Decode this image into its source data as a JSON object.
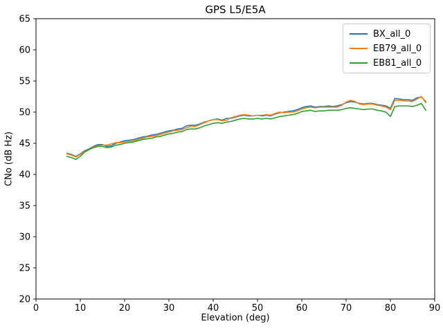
{
  "chart_data": {
    "type": "line",
    "title": "GPS L5/E5A",
    "xlabel": "Elevation (deg)",
    "ylabel": "CNo (dB Hz)",
    "xlim": [
      0,
      90
    ],
    "ylim": [
      20,
      65
    ],
    "xticks": [
      0,
      10,
      20,
      30,
      40,
      50,
      60,
      70,
      80,
      90
    ],
    "yticks": [
      20,
      25,
      30,
      35,
      40,
      45,
      50,
      55,
      60,
      65
    ],
    "grid": false,
    "legend_position": "upper right",
    "background_color": "#ffffff",
    "spine_color": "#000000",
    "x": [
      7,
      8,
      9,
      10,
      11,
      12,
      13,
      14,
      15,
      16,
      17,
      18,
      19,
      20,
      21,
      22,
      23,
      24,
      25,
      26,
      27,
      28,
      29,
      30,
      31,
      32,
      33,
      34,
      35,
      36,
      37,
      38,
      39,
      40,
      41,
      42,
      43,
      44,
      45,
      46,
      47,
      48,
      49,
      50,
      51,
      52,
      53,
      54,
      55,
      56,
      57,
      58,
      59,
      60,
      61,
      62,
      63,
      64,
      65,
      66,
      67,
      68,
      69,
      70,
      71,
      72,
      73,
      74,
      75,
      76,
      77,
      78,
      79,
      80,
      81,
      82,
      83,
      84,
      85,
      86,
      87,
      88
    ],
    "series": [
      {
        "name": "BX_all_0",
        "color": "#1f77b4",
        "values": [
          43.4,
          43.2,
          42.9,
          43.3,
          43.8,
          44.1,
          44.5,
          44.8,
          44.8,
          44.5,
          44.6,
          45.0,
          45.2,
          45.4,
          45.5,
          45.6,
          45.8,
          46.0,
          46.1,
          46.3,
          46.4,
          46.6,
          46.8,
          47.0,
          47.1,
          47.3,
          47.4,
          47.8,
          47.9,
          47.9,
          48.1,
          48.4,
          48.6,
          48.8,
          48.9,
          48.7,
          49.0,
          49.0,
          49.2,
          49.4,
          49.5,
          49.4,
          49.4,
          49.5,
          49.4,
          49.5,
          49.4,
          49.7,
          49.9,
          50.0,
          50.1,
          50.2,
          50.4,
          50.7,
          50.9,
          51.0,
          50.8,
          50.9,
          50.9,
          51.0,
          50.9,
          51.0,
          51.2,
          51.5,
          51.7,
          51.6,
          51.4,
          51.3,
          51.4,
          51.4,
          51.2,
          51.1,
          51.0,
          50.6,
          52.2,
          52.1,
          52.0,
          52.0,
          51.9,
          52.3,
          52.4,
          51.7
        ]
      },
      {
        "name": "EB79_all_0",
        "color": "#ff7f0e",
        "values": [
          43.3,
          43.1,
          42.8,
          43.2,
          43.7,
          44.0,
          44.4,
          44.6,
          44.7,
          44.7,
          44.9,
          45.1,
          45.1,
          45.2,
          45.3,
          45.4,
          45.6,
          45.8,
          46.0,
          46.1,
          46.2,
          46.4,
          46.6,
          46.8,
          47.0,
          47.1,
          47.2,
          47.5,
          47.7,
          47.7,
          48.0,
          48.3,
          48.6,
          48.8,
          48.8,
          48.6,
          48.7,
          49.1,
          49.3,
          49.5,
          49.6,
          49.5,
          49.4,
          49.5,
          49.5,
          49.6,
          49.5,
          49.8,
          50.0,
          49.9,
          50.0,
          50.0,
          50.2,
          50.5,
          50.7,
          50.8,
          50.7,
          50.8,
          50.8,
          50.8,
          50.8,
          50.8,
          51.1,
          51.6,
          51.9,
          51.7,
          51.3,
          51.2,
          51.3,
          51.3,
          51.1,
          51.0,
          50.8,
          50.4,
          51.9,
          51.9,
          51.8,
          51.8,
          51.7,
          52.1,
          52.5,
          51.5
        ]
      },
      {
        "name": "EB81_all_0",
        "color": "#2ca02c",
        "values": [
          42.9,
          42.7,
          42.4,
          42.9,
          43.6,
          44.0,
          44.3,
          44.5,
          44.5,
          44.3,
          44.4,
          44.7,
          44.8,
          45.0,
          45.1,
          45.2,
          45.4,
          45.6,
          45.7,
          45.8,
          46.0,
          46.1,
          46.3,
          46.5,
          46.6,
          46.8,
          46.9,
          47.2,
          47.3,
          47.3,
          47.5,
          47.8,
          48.0,
          48.2,
          48.3,
          48.2,
          48.4,
          48.5,
          48.7,
          48.9,
          49.0,
          48.9,
          48.9,
          49.0,
          48.9,
          49.0,
          48.9,
          49.1,
          49.3,
          49.4,
          49.5,
          49.6,
          49.8,
          50.1,
          50.2,
          50.3,
          50.1,
          50.2,
          50.2,
          50.3,
          50.3,
          50.3,
          50.4,
          50.6,
          50.7,
          50.6,
          50.5,
          50.4,
          50.5,
          50.5,
          50.3,
          50.2,
          50.0,
          49.3,
          50.9,
          51.0,
          51.0,
          51.0,
          50.9,
          51.1,
          51.4,
          50.3
        ]
      }
    ]
  }
}
